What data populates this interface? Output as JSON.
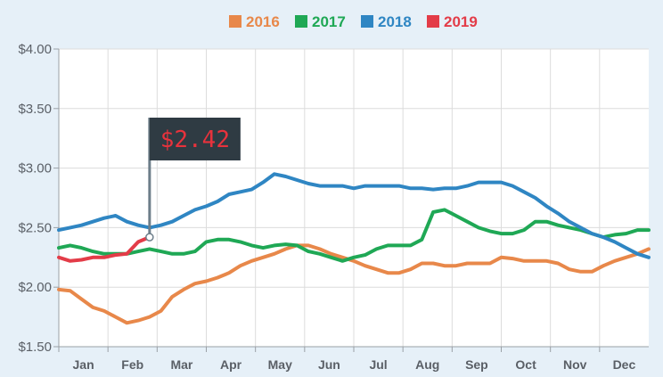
{
  "chart_data": {
    "type": "line",
    "title": "",
    "xlabel": "",
    "ylabel": "",
    "ylim": [
      1.5,
      4.0
    ],
    "ytick_values": [
      1.5,
      2.0,
      2.5,
      3.0,
      3.5,
      4.0
    ],
    "ytick_labels": [
      "$1.50",
      "$2.00",
      "$2.50",
      "$3.00",
      "$3.50",
      "$4.00"
    ],
    "xtick_labels": [
      "Jan",
      "Feb",
      "Mar",
      "Apr",
      "May",
      "Jun",
      "Jul",
      "Aug",
      "Sep",
      "Oct",
      "Nov",
      "Dec"
    ],
    "x_unit": "week of year",
    "xlim": [
      1,
      53
    ],
    "grid": true,
    "legend_position": "top-center",
    "annotation": {
      "text": "$2.42",
      "x": 9,
      "y": 2.42
    },
    "series": [
      {
        "name": "2016",
        "color": "#e8884a",
        "x": [
          1,
          2,
          3,
          4,
          5,
          6,
          7,
          8,
          9,
          10,
          11,
          12,
          13,
          14,
          15,
          16,
          17,
          18,
          19,
          20,
          21,
          22,
          23,
          24,
          25,
          26,
          27,
          28,
          29,
          30,
          31,
          32,
          33,
          34,
          35,
          36,
          37,
          38,
          39,
          40,
          41,
          42,
          43,
          44,
          45,
          46,
          47,
          48,
          49,
          50,
          51,
          52,
          53
        ],
        "y": [
          1.98,
          1.97,
          1.9,
          1.83,
          1.8,
          1.75,
          1.7,
          1.72,
          1.75,
          1.8,
          1.92,
          1.98,
          2.03,
          2.05,
          2.08,
          2.12,
          2.18,
          2.22,
          2.25,
          2.28,
          2.32,
          2.35,
          2.35,
          2.32,
          2.28,
          2.25,
          2.22,
          2.18,
          2.15,
          2.12,
          2.12,
          2.15,
          2.2,
          2.2,
          2.18,
          2.18,
          2.2,
          2.2,
          2.2,
          2.25,
          2.24,
          2.22,
          2.22,
          2.22,
          2.2,
          2.15,
          2.13,
          2.13,
          2.18,
          2.22,
          2.25,
          2.28,
          2.32
        ]
      },
      {
        "name": "2017",
        "color": "#1fa855",
        "x": [
          1,
          2,
          3,
          4,
          5,
          6,
          7,
          8,
          9,
          10,
          11,
          12,
          13,
          14,
          15,
          16,
          17,
          18,
          19,
          20,
          21,
          22,
          23,
          24,
          25,
          26,
          27,
          28,
          29,
          30,
          31,
          32,
          33,
          34,
          35,
          36,
          37,
          38,
          39,
          40,
          41,
          42,
          43,
          44,
          45,
          46,
          47,
          48,
          49,
          50,
          51,
          52,
          53
        ],
        "y": [
          2.33,
          2.35,
          2.33,
          2.3,
          2.28,
          2.28,
          2.28,
          2.3,
          2.32,
          2.3,
          2.28,
          2.28,
          2.3,
          2.38,
          2.4,
          2.4,
          2.38,
          2.35,
          2.33,
          2.35,
          2.36,
          2.35,
          2.3,
          2.28,
          2.25,
          2.22,
          2.25,
          2.27,
          2.32,
          2.35,
          2.35,
          2.35,
          2.4,
          2.63,
          2.65,
          2.6,
          2.55,
          2.5,
          2.47,
          2.45,
          2.45,
          2.48,
          2.55,
          2.55,
          2.52,
          2.5,
          2.48,
          2.45,
          2.42,
          2.44,
          2.45,
          2.48,
          2.48
        ]
      },
      {
        "name": "2018",
        "color": "#2f86c3",
        "x": [
          1,
          2,
          3,
          4,
          5,
          6,
          7,
          8,
          9,
          10,
          11,
          12,
          13,
          14,
          15,
          16,
          17,
          18,
          19,
          20,
          21,
          22,
          23,
          24,
          25,
          26,
          27,
          28,
          29,
          30,
          31,
          32,
          33,
          34,
          35,
          36,
          37,
          38,
          39,
          40,
          41,
          42,
          43,
          44,
          45,
          46,
          47,
          48,
          49,
          50,
          51,
          52,
          53
        ],
        "y": [
          2.48,
          2.5,
          2.52,
          2.55,
          2.58,
          2.6,
          2.55,
          2.52,
          2.5,
          2.52,
          2.55,
          2.6,
          2.65,
          2.68,
          2.72,
          2.78,
          2.8,
          2.82,
          2.88,
          2.95,
          2.93,
          2.9,
          2.87,
          2.85,
          2.85,
          2.85,
          2.83,
          2.85,
          2.85,
          2.85,
          2.85,
          2.83,
          2.83,
          2.82,
          2.83,
          2.83,
          2.85,
          2.88,
          2.88,
          2.88,
          2.85,
          2.8,
          2.75,
          2.68,
          2.62,
          2.55,
          2.5,
          2.45,
          2.42,
          2.38,
          2.33,
          2.28,
          2.25
        ]
      },
      {
        "name": "2019",
        "color": "#e33c48",
        "x": [
          1,
          2,
          3,
          4,
          5,
          6,
          7,
          8,
          9
        ],
        "y": [
          2.25,
          2.22,
          2.23,
          2.25,
          2.25,
          2.27,
          2.28,
          2.38,
          2.42
        ]
      }
    ]
  }
}
